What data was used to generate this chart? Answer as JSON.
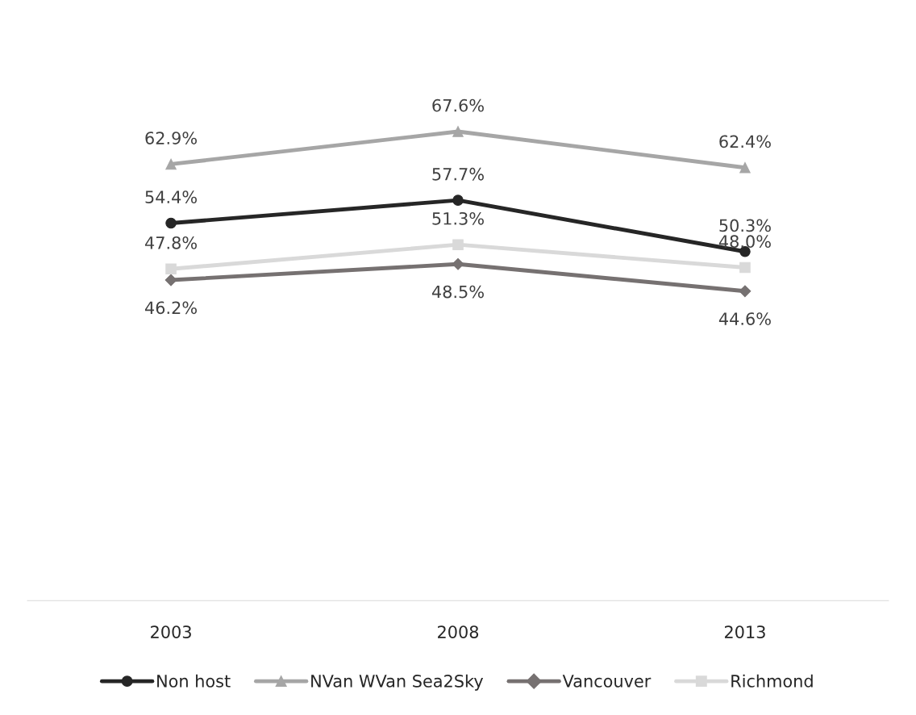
{
  "chart_data": {
    "type": "line",
    "categories": [
      "2003",
      "2008",
      "2013"
    ],
    "series": [
      {
        "name": "Non host",
        "color": "#262626",
        "marker": "circle",
        "values": [
          54.4,
          57.7,
          50.3
        ],
        "value_labels": [
          "54.4%",
          "57.7%",
          "50.3%"
        ]
      },
      {
        "name": "NVan WVan Sea2Sky",
        "color": "#a6a6a6",
        "marker": "triangle",
        "values": [
          62.9,
          67.6,
          62.4
        ],
        "value_labels": [
          "62.9%",
          "67.6%",
          "62.4%"
        ]
      },
      {
        "name": "Vancouver",
        "color": "#767171",
        "marker": "diamond",
        "values": [
          46.2,
          48.5,
          44.6
        ],
        "value_labels": [
          "46.2%",
          "48.5%",
          "44.6%"
        ]
      },
      {
        "name": "Richmond",
        "color": "#d9d9d9",
        "marker": "square",
        "values": [
          47.8,
          51.3,
          48.0
        ],
        "value_labels": [
          "47.8%",
          "51.3%",
          "48.0%"
        ]
      }
    ],
    "legend": "bottom",
    "grid": false,
    "line_style": "solid"
  }
}
